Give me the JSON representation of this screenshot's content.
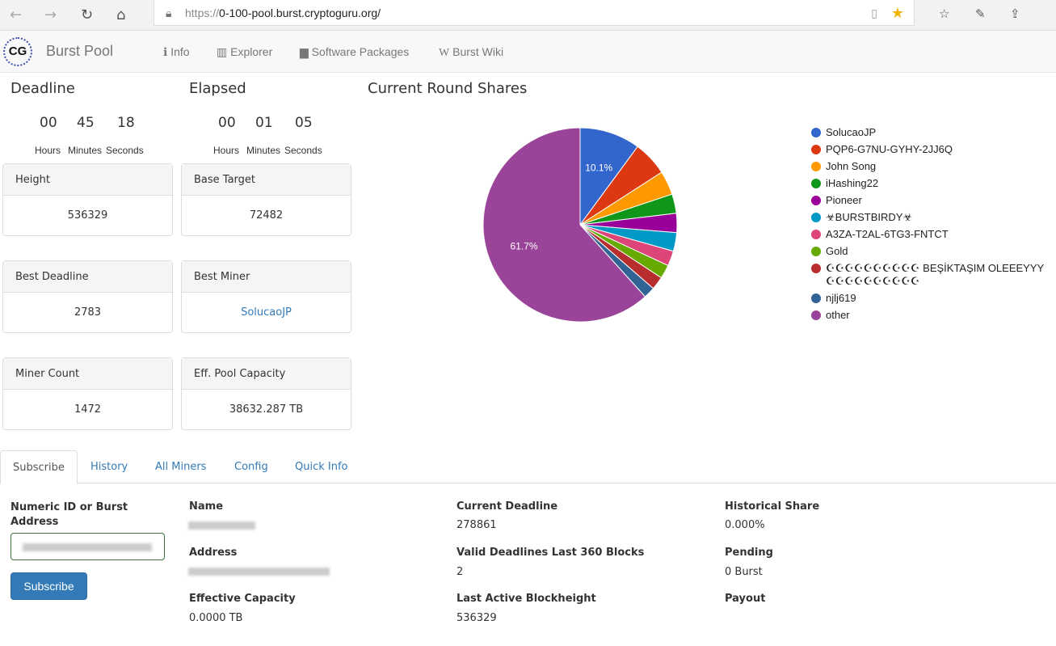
{
  "browser": {
    "url_prefix": "https://",
    "url_host": "0-100-pool.burst.cryptoguru.org/"
  },
  "nav": {
    "logo": "CG",
    "brand": "Burst Pool",
    "items": [
      {
        "icon": "info-icon",
        "label": "Info"
      },
      {
        "icon": "bar-chart-icon",
        "label": "Explorer"
      },
      {
        "icon": "briefcase-icon",
        "label": "Software Packages"
      },
      {
        "icon": "wikipedia-icon",
        "label": "Burst Wiki"
      }
    ]
  },
  "deadline": {
    "title": "Deadline",
    "hours": "00",
    "minutes": "45",
    "seconds": "18"
  },
  "elapsed": {
    "title": "Elapsed",
    "hours": "00",
    "minutes": "01",
    "seconds": "05"
  },
  "time_labels": {
    "hours": "Hours",
    "minutes": "Minutes",
    "seconds": "Seconds"
  },
  "panels": [
    {
      "title": "Height",
      "value": "536329"
    },
    {
      "title": "Base Target",
      "value": "72482"
    },
    {
      "title": "Best Deadline",
      "value": "2783"
    },
    {
      "title": "Best Miner",
      "value": "SolucaoJP"
    },
    {
      "title": "Miner Count",
      "value": "1472"
    },
    {
      "title": "Eff. Pool Capacity",
      "value": "38632.287 TB"
    }
  ],
  "chart_data": {
    "type": "pie",
    "title": "Current Round Shares",
    "legend_position": "right",
    "labels": [
      "SolucaoJP",
      "PQP6-G7NU-GYHY-2JJ6Q",
      "John Song",
      "iHashing22",
      "Pioneer",
      "☣BURSTBIRDY☣",
      "A3ZA-T2AL-6TG3-FNTCT",
      "Gold",
      "☪☪☪☪☪☪☪☪☪☪ BEŞİKTAŞIM OLEEEYYY ☪☪☪☪☪☪☪☪☪☪",
      "njlj619",
      "other"
    ],
    "values": [
      10.1,
      5.8,
      4.0,
      3.2,
      3.2,
      3.1,
      2.5,
      2.3,
      2.2,
      1.9,
      61.7
    ],
    "data_labels": [
      "10.1%",
      "",
      "",
      "",
      "",
      "",
      "",
      "",
      "",
      "",
      "61.7%"
    ],
    "colors": [
      "#3366cc",
      "#dc3912",
      "#ff9900",
      "#109618",
      "#990099",
      "#0099c6",
      "#dd4477",
      "#66aa00",
      "#b82e2e",
      "#316395",
      "#994499"
    ]
  },
  "tabs": [
    "Subscribe",
    "History",
    "All Miners",
    "Config Quick Info"
  ],
  "tab_list": [
    "Subscribe",
    "History",
    "All Miners",
    "Config",
    "Quick Info"
  ],
  "subscribe": {
    "label": "Numeric ID or Burst Address",
    "button": "Subscribe"
  },
  "info": {
    "name_label": "Name",
    "address_label": "Address",
    "eff_cap_label": "Effective Capacity",
    "eff_cap": "0.0000 TB",
    "cur_deadline_label": "Current Deadline",
    "cur_deadline": "278861",
    "valid_label": "Valid Deadlines Last 360 Blocks",
    "valid": "2",
    "last_active_label": "Last Active Blockheight",
    "last_active": "536329",
    "hist_share_label": "Historical Share",
    "hist_share": "0.000%",
    "pending_label": "Pending",
    "pending": "0 Burst",
    "payout_label": "Payout"
  }
}
